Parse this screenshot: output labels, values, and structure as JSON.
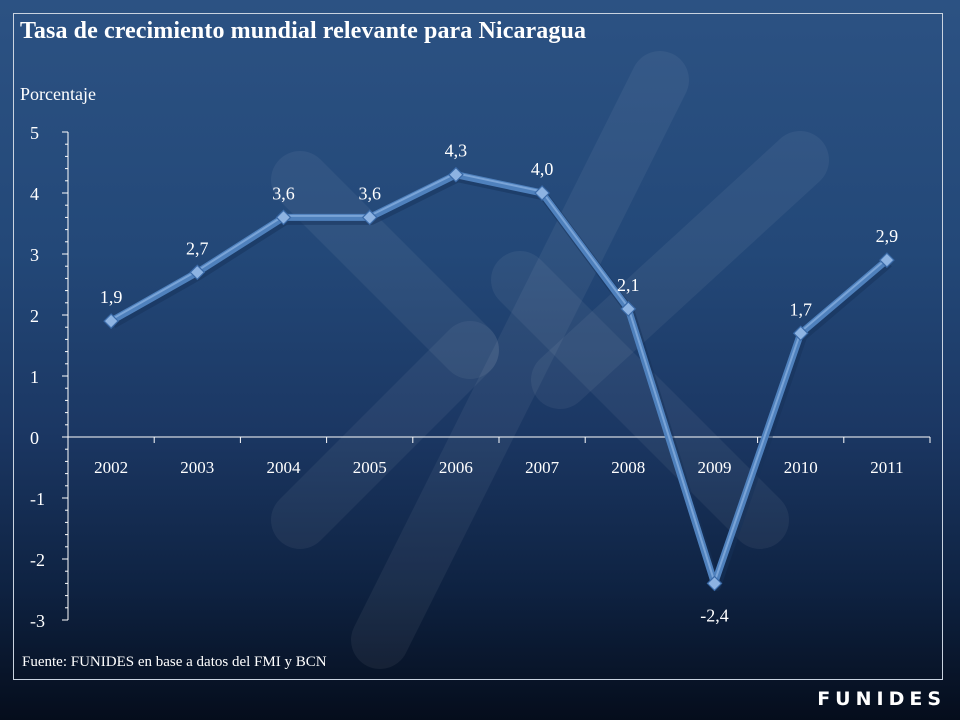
{
  "slide": {
    "title": "Tasa de crecimiento mundial relevante para Nicaragua",
    "ylabel": "Porcentaje",
    "source": "Fuente: FUNIDES en base a datos del FMI y BCN",
    "logo": "FUNIDES"
  },
  "colors": {
    "line": "#4f81bd",
    "line_highlight": "#8db3e2",
    "text": "#ffffff",
    "axis": "#ffffff",
    "background_top": "#2c5283",
    "background_bottom": "#050d1c"
  },
  "chart_data": {
    "type": "line",
    "title": "Tasa de crecimiento mundial relevante para Nicaragua",
    "ylabel": "Porcentaje",
    "xlabel": "",
    "categories": [
      "2002",
      "2003",
      "2004",
      "2005",
      "2006",
      "2007",
      "2008",
      "2009",
      "2010",
      "2011"
    ],
    "series": [
      {
        "values": [
          1.9,
          2.7,
          3.6,
          3.6,
          4.3,
          4.0,
          2.1,
          -2.4,
          1.7,
          2.9
        ],
        "labels": [
          "1,9",
          "2,7",
          "3,6",
          "3,6",
          "4,3",
          "4,0",
          "2,1",
          "-2,4",
          "1,7",
          "2,9"
        ],
        "marker": "diamond"
      }
    ],
    "ylim": [
      -3,
      5
    ],
    "yticks": [
      -3,
      -2,
      -1,
      0,
      1,
      2,
      3,
      4,
      5
    ],
    "ytick_labels": [
      "-3",
      "-2",
      "-1",
      "0",
      "1",
      "2",
      "3",
      "4",
      "5"
    ],
    "grid": false,
    "legend": "none"
  }
}
